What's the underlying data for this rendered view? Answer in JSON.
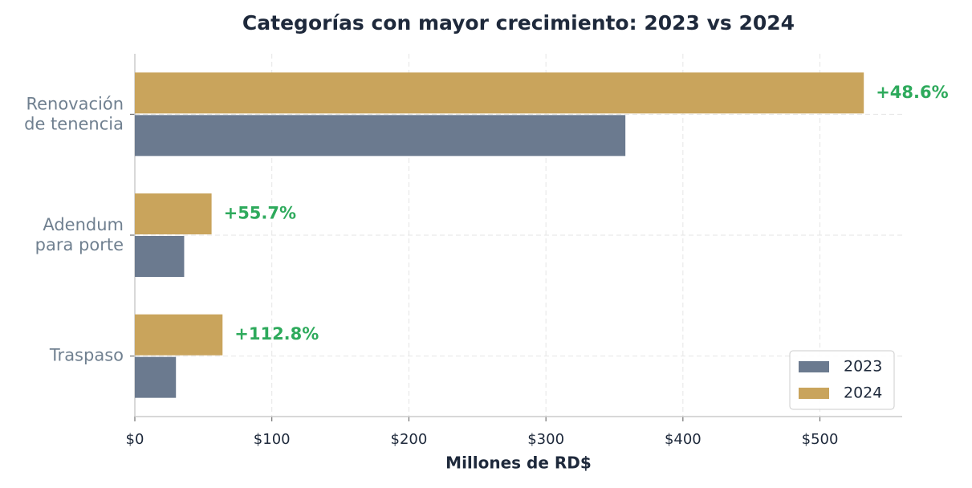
{
  "chart_data": {
    "type": "hbar",
    "title": "Categorías con mayor crecimiento: 2023 vs 2024",
    "x_label": "Millones de RD$",
    "categories": [
      "Renovación de tenencia",
      "Adendum para porte",
      "Traspaso"
    ],
    "series": [
      {
        "name": "2023",
        "color": "#6b7a8f",
        "values": [
          358,
          36,
          30
        ]
      },
      {
        "name": "2024",
        "color": "#c9a45c",
        "values": [
          532,
          56,
          64
        ]
      }
    ],
    "annotations": [
      "+48.6%",
      "+55.7%",
      "+112.8%"
    ],
    "annotation_color": "#2eaa5c",
    "xlim": [
      0,
      560
    ],
    "xticks": [
      {
        "value": 0,
        "label": "$0"
      },
      {
        "value": 100,
        "label": "$100"
      },
      {
        "value": 200,
        "label": "$200"
      },
      {
        "value": 300,
        "label": "$300"
      },
      {
        "value": 400,
        "label": "$400"
      },
      {
        "value": 500,
        "label": "$500"
      }
    ],
    "grid": true,
    "legend": "lower right"
  }
}
